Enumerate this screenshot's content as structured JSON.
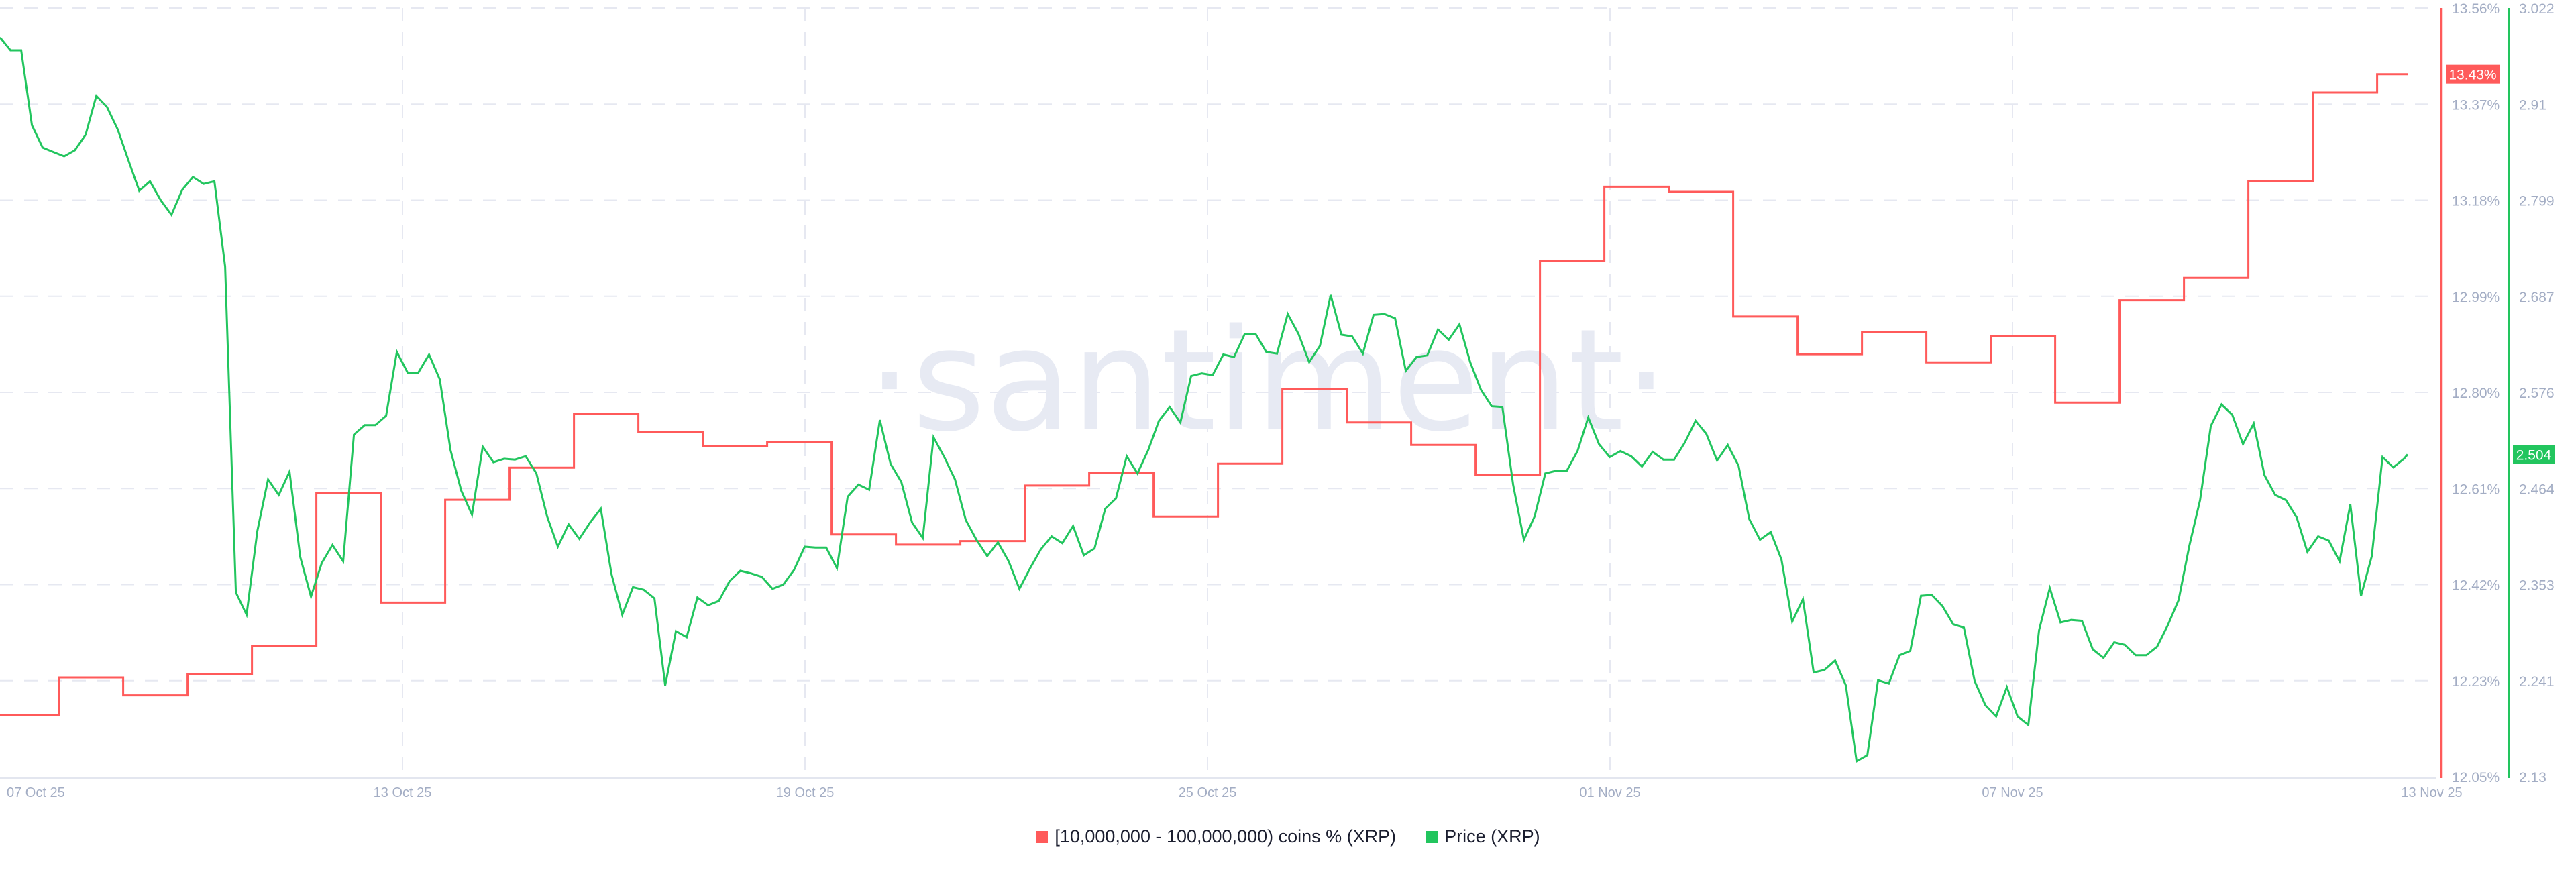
{
  "chart_data": {
    "type": "line",
    "watermark": "·santiment·",
    "x_ticks": [
      "07 Oct 25",
      "13 Oct 25",
      "19 Oct 25",
      "25 Oct 25",
      "01 Nov 25",
      "07 Nov 25",
      "13 Nov 25"
    ],
    "grid": true,
    "legend_position": "bottom-center",
    "axes": {
      "left_series_axis": {
        "series": "[10,000,000 - 100,000,000) coins % (XRP)",
        "range": [
          12.05,
          13.56
        ],
        "ticks": [
          "13.56%",
          "13.37%",
          "13.18%",
          "12.99%",
          "12.80%",
          "12.61%",
          "12.42%",
          "12.23%",
          "12.05%"
        ],
        "color": "#ff5a5a"
      },
      "right_series_axis": {
        "series": "Price (XRP)",
        "range": [
          2.13,
          3.022
        ],
        "ticks": [
          "3.022",
          "2.91",
          "2.799",
          "2.687",
          "2.576",
          "2.464",
          "2.353",
          "2.241",
          "2.13"
        ],
        "color": "#22c55e"
      }
    },
    "series": [
      {
        "name": "[10,000,000 - 100,000,000) coins % (XRP)",
        "color": "#ff5a5a",
        "style": "step",
        "unit": "%",
        "last_value_label": "13.43%",
        "points": [
          [
            "2025-10-07",
            12.171
          ],
          [
            "2025-10-08",
            12.245
          ],
          [
            "2025-10-09",
            12.21
          ],
          [
            "2025-10-10",
            12.252
          ],
          [
            "2025-10-11",
            12.307
          ],
          [
            "2025-10-12",
            12.608
          ],
          [
            "2025-10-13",
            12.392
          ],
          [
            "2025-10-14",
            12.594
          ],
          [
            "2025-10-15",
            12.657
          ],
          [
            "2025-10-16",
            12.763
          ],
          [
            "2025-10-17",
            12.727
          ],
          [
            "2025-10-18",
            12.699
          ],
          [
            "2025-10-19",
            12.707
          ],
          [
            "2025-10-20",
            12.526
          ],
          [
            "2025-10-21",
            12.506
          ],
          [
            "2025-10-22",
            12.513
          ],
          [
            "2025-10-23",
            12.622
          ],
          [
            "2025-10-24",
            12.647
          ],
          [
            "2025-10-25",
            12.561
          ],
          [
            "2025-10-26",
            12.665
          ],
          [
            "2025-10-27",
            12.812
          ],
          [
            "2025-10-28",
            12.746
          ],
          [
            "2025-10-29",
            12.702
          ],
          [
            "2025-10-30",
            12.643
          ],
          [
            "2025-10-31",
            13.063
          ],
          [
            "2025-11-01",
            13.209
          ],
          [
            "2025-11-02",
            13.199
          ],
          [
            "2025-11-03",
            12.954
          ],
          [
            "2025-11-04",
            12.88
          ],
          [
            "2025-11-05",
            12.923
          ],
          [
            "2025-11-06",
            12.864
          ],
          [
            "2025-11-07",
            12.915
          ],
          [
            "2025-11-08",
            12.785
          ],
          [
            "2025-11-09",
            12.986
          ],
          [
            "2025-11-10",
            13.03
          ],
          [
            "2025-11-11",
            13.22
          ],
          [
            "2025-11-12",
            13.394
          ],
          [
            "2025-11-13",
            13.43
          ]
        ]
      },
      {
        "name": "Price (XRP)",
        "color": "#22c55e",
        "style": "line",
        "last_value_label": "2.504",
        "x_start": "2025-10-07 02:00",
        "interval_hours": 4,
        "values": [
          2.988,
          2.973,
          2.973,
          2.886,
          2.86,
          2.855,
          2.85,
          2.857,
          2.875,
          2.92,
          2.907,
          2.881,
          2.845,
          2.81,
          2.821,
          2.799,
          2.782,
          2.811,
          2.826,
          2.818,
          2.821,
          2.722,
          2.344,
          2.318,
          2.415,
          2.475,
          2.457,
          2.484,
          2.385,
          2.339,
          2.378,
          2.399,
          2.38,
          2.527,
          2.538,
          2.538,
          2.549,
          2.623,
          2.599,
          2.599,
          2.62,
          2.591,
          2.509,
          2.462,
          2.434,
          2.513,
          2.495,
          2.499,
          2.498,
          2.502,
          2.482,
          2.432,
          2.397,
          2.423,
          2.406,
          2.425,
          2.441,
          2.365,
          2.318,
          2.35,
          2.347,
          2.337,
          2.236,
          2.299,
          2.292,
          2.338,
          2.329,
          2.334,
          2.357,
          2.369,
          2.366,
          2.362,
          2.348,
          2.353,
          2.37,
          2.397,
          2.396,
          2.396,
          2.372,
          2.455,
          2.469,
          2.463,
          2.544,
          2.493,
          2.472,
          2.425,
          2.407,
          2.524,
          2.501,
          2.475,
          2.428,
          2.405,
          2.386,
          2.402,
          2.38,
          2.348,
          2.372,
          2.394,
          2.409,
          2.401,
          2.421,
          2.387,
          2.395,
          2.441,
          2.453,
          2.502,
          2.482,
          2.509,
          2.543,
          2.559,
          2.541,
          2.595,
          2.598,
          2.596,
          2.62,
          2.617,
          2.644,
          2.644,
          2.623,
          2.621,
          2.667,
          2.644,
          2.611,
          2.63,
          2.689,
          2.643,
          2.641,
          2.621,
          2.666,
          2.667,
          2.662,
          2.601,
          2.617,
          2.619,
          2.649,
          2.637,
          2.655,
          2.611,
          2.579,
          2.56,
          2.559,
          2.469,
          2.405,
          2.432,
          2.482,
          2.485,
          2.485,
          2.508,
          2.547,
          2.516,
          2.501,
          2.508,
          2.502,
          2.49,
          2.507,
          2.498,
          2.498,
          2.518,
          2.543,
          2.528,
          2.497,
          2.515,
          2.491,
          2.429,
          2.405,
          2.414,
          2.382,
          2.31,
          2.336,
          2.251,
          2.254,
          2.265,
          2.236,
          2.148,
          2.155,
          2.242,
          2.238,
          2.271,
          2.276,
          2.34,
          2.341,
          2.328,
          2.307,
          2.303,
          2.241,
          2.213,
          2.2,
          2.234,
          2.2,
          2.19,
          2.3,
          2.349,
          2.309,
          2.312,
          2.311,
          2.278,
          2.268,
          2.286,
          2.283,
          2.271,
          2.271,
          2.281,
          2.306,
          2.335,
          2.398,
          2.451,
          2.537,
          2.562,
          2.55,
          2.516,
          2.54,
          2.48,
          2.457,
          2.451,
          2.431,
          2.391,
          2.409,
          2.404,
          2.38,
          2.446,
          2.34,
          2.386,
          2.501,
          2.489,
          2.499,
          2.504
        ]
      }
    ]
  },
  "legend": {
    "items": [
      {
        "label": "[10,000,000 - 100,000,000) coins % (XRP)",
        "color": "#ff5a5a"
      },
      {
        "label": "Price (XRP)",
        "color": "#22c55e"
      }
    ]
  }
}
